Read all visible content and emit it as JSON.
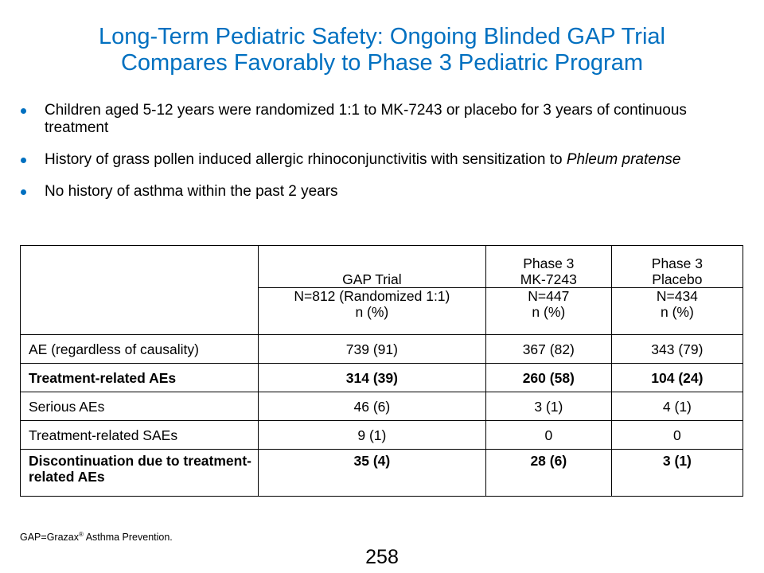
{
  "slide": {
    "title_line1": "Long-Term Pediatric Safety: Ongoing Blinded GAP Trial",
    "title_line2": "Compares Favorably to Phase 3 Pediatric Program",
    "bullets": [
      {
        "text": "Children aged 5-12 years were randomized 1:1 to MK-7243 or placebo for 3 years of continuous treatment"
      },
      {
        "text": "History of grass pollen induced allergic rhinoconjunctivitis with sensitization to ",
        "italic": "Phleum pratense"
      },
      {
        "text": "No history of asthma within the past 2 years"
      }
    ],
    "accent_color": "#0070c0",
    "table": {
      "header_top": [
        "",
        "GAP Trial",
        "Phase 3\nMK-7243",
        "Phase 3\nPlacebo"
      ],
      "header_bottom": [
        "",
        "N=812 (Randomized 1:1)\nn (%)",
        "N=447\nn (%)",
        "N=434\nn (%)"
      ],
      "rows": [
        {
          "label": "AE (regardless of causality)",
          "values": [
            "739 (91)",
            "367 (82)",
            "343 (79)"
          ],
          "bold": false
        },
        {
          "label": "Treatment-related AEs",
          "values": [
            "314 (39)",
            "260 (58)",
            "104 (24)"
          ],
          "bold": true
        },
        {
          "label": "Serious AEs",
          "values": [
            "46 (6)",
            "3 (1)",
            "4 (1)"
          ],
          "bold": false
        },
        {
          "label": "Treatment-related SAEs",
          "values": [
            "9 (1)",
            "0",
            "0"
          ],
          "bold": false
        },
        {
          "label": "Discontinuation due to treatment-related AEs",
          "values": [
            "35 (4)",
            "28 (6)",
            "3 (1)"
          ],
          "bold": true
        }
      ]
    },
    "footnote_prefix": "GAP=Grazax",
    "footnote_sup": "®",
    "footnote_suffix": " Asthma Prevention.",
    "page_number": "258"
  }
}
